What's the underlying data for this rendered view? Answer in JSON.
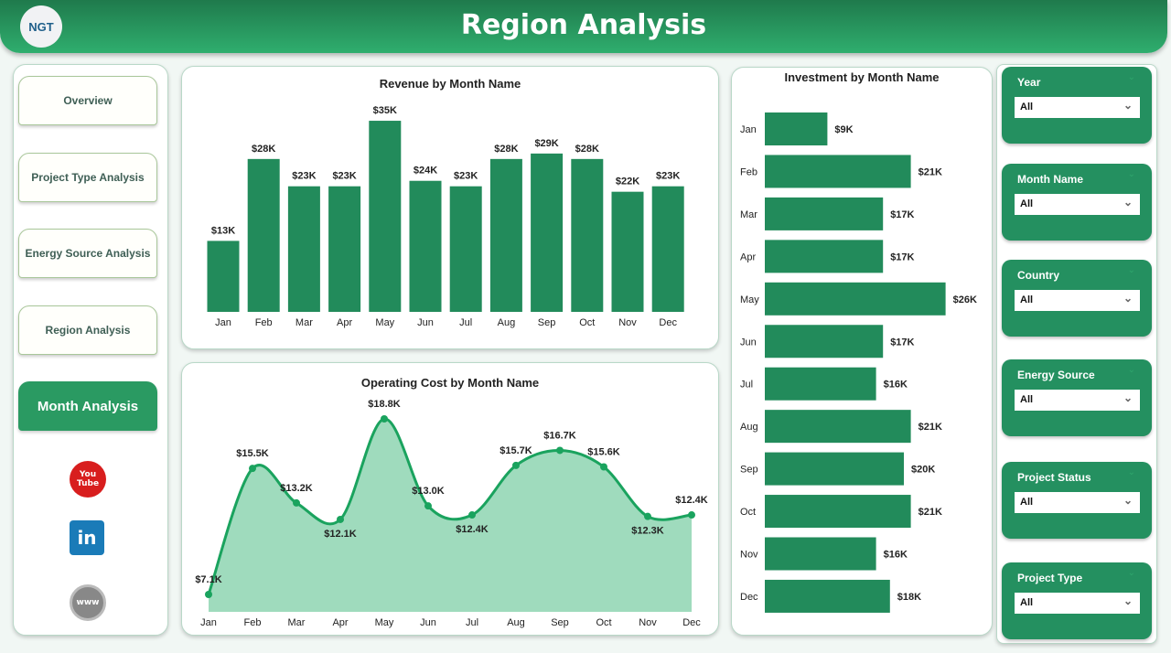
{
  "header": {
    "title": "Region Analysis",
    "logo": "NGT"
  },
  "nav": [
    {
      "label": "Overview"
    },
    {
      "label": "Project Type Analysis"
    },
    {
      "label": "Energy Source Analysis"
    },
    {
      "label": "Region Analysis"
    },
    {
      "label": "Month Analysis",
      "active": true
    }
  ],
  "social": [
    {
      "icon": "youtube-icon",
      "label": "You Tube"
    },
    {
      "icon": "linkedin-icon",
      "label": "in"
    },
    {
      "icon": "globe-icon",
      "label": "www"
    }
  ],
  "colors": {
    "accent": "#249060",
    "bar": "#228b5b",
    "line": "#1aa35e",
    "area": "#9fdbbd"
  },
  "slicers": [
    {
      "label": "Year",
      "value": "All"
    },
    {
      "label": "Month Name",
      "value": "All"
    },
    {
      "label": "Country",
      "value": "All"
    },
    {
      "label": "Energy Source",
      "value": "All"
    },
    {
      "label": "Project Status",
      "value": "All"
    },
    {
      "label": "Project Type",
      "value": "All"
    }
  ],
  "chart_data": [
    {
      "type": "bar",
      "title": "Revenue by Month Name",
      "categories": [
        "Jan",
        "Feb",
        "Mar",
        "Apr",
        "May",
        "Jun",
        "Jul",
        "Aug",
        "Sep",
        "Oct",
        "Nov",
        "Dec"
      ],
      "values": [
        13,
        28,
        23,
        23,
        35,
        24,
        23,
        28,
        29,
        28,
        22,
        23
      ],
      "labels": [
        "$13K",
        "$28K",
        "$23K",
        "$23K",
        "$35K",
        "$24K",
        "$23K",
        "$28K",
        "$29K",
        "$28K",
        "$22K",
        "$23K"
      ],
      "unit": "K"
    },
    {
      "type": "area",
      "title": "Operating Cost by Month Name",
      "categories": [
        "Jan",
        "Feb",
        "Mar",
        "Apr",
        "May",
        "Jun",
        "Jul",
        "Aug",
        "Sep",
        "Oct",
        "Nov",
        "Dec"
      ],
      "values": [
        7.1,
        15.5,
        13.2,
        12.1,
        18.8,
        13.0,
        12.4,
        15.7,
        16.7,
        15.6,
        12.3,
        12.4
      ],
      "labels": [
        "$7.1K",
        "$15.5K",
        "$13.2K",
        "$12.1K",
        "$18.8K",
        "$13.0K",
        "$12.4K",
        "$15.7K",
        "$16.7K",
        "$15.6K",
        "$12.3K",
        "$12.4K"
      ]
    },
    {
      "type": "bar",
      "orientation": "horizontal",
      "title": "Investment by Month Name",
      "categories": [
        "Jan",
        "Feb",
        "Mar",
        "Apr",
        "May",
        "Jun",
        "Jul",
        "Aug",
        "Sep",
        "Oct",
        "Nov",
        "Dec"
      ],
      "values": [
        9,
        21,
        17,
        17,
        26,
        17,
        16,
        21,
        20,
        21,
        16,
        18
      ],
      "labels": [
        "$9K",
        "$21K",
        "$17K",
        "$17K",
        "$26K",
        "$17K",
        "$16K",
        "$21K",
        "$20K",
        "$21K",
        "$16K",
        "$18K"
      ]
    }
  ]
}
